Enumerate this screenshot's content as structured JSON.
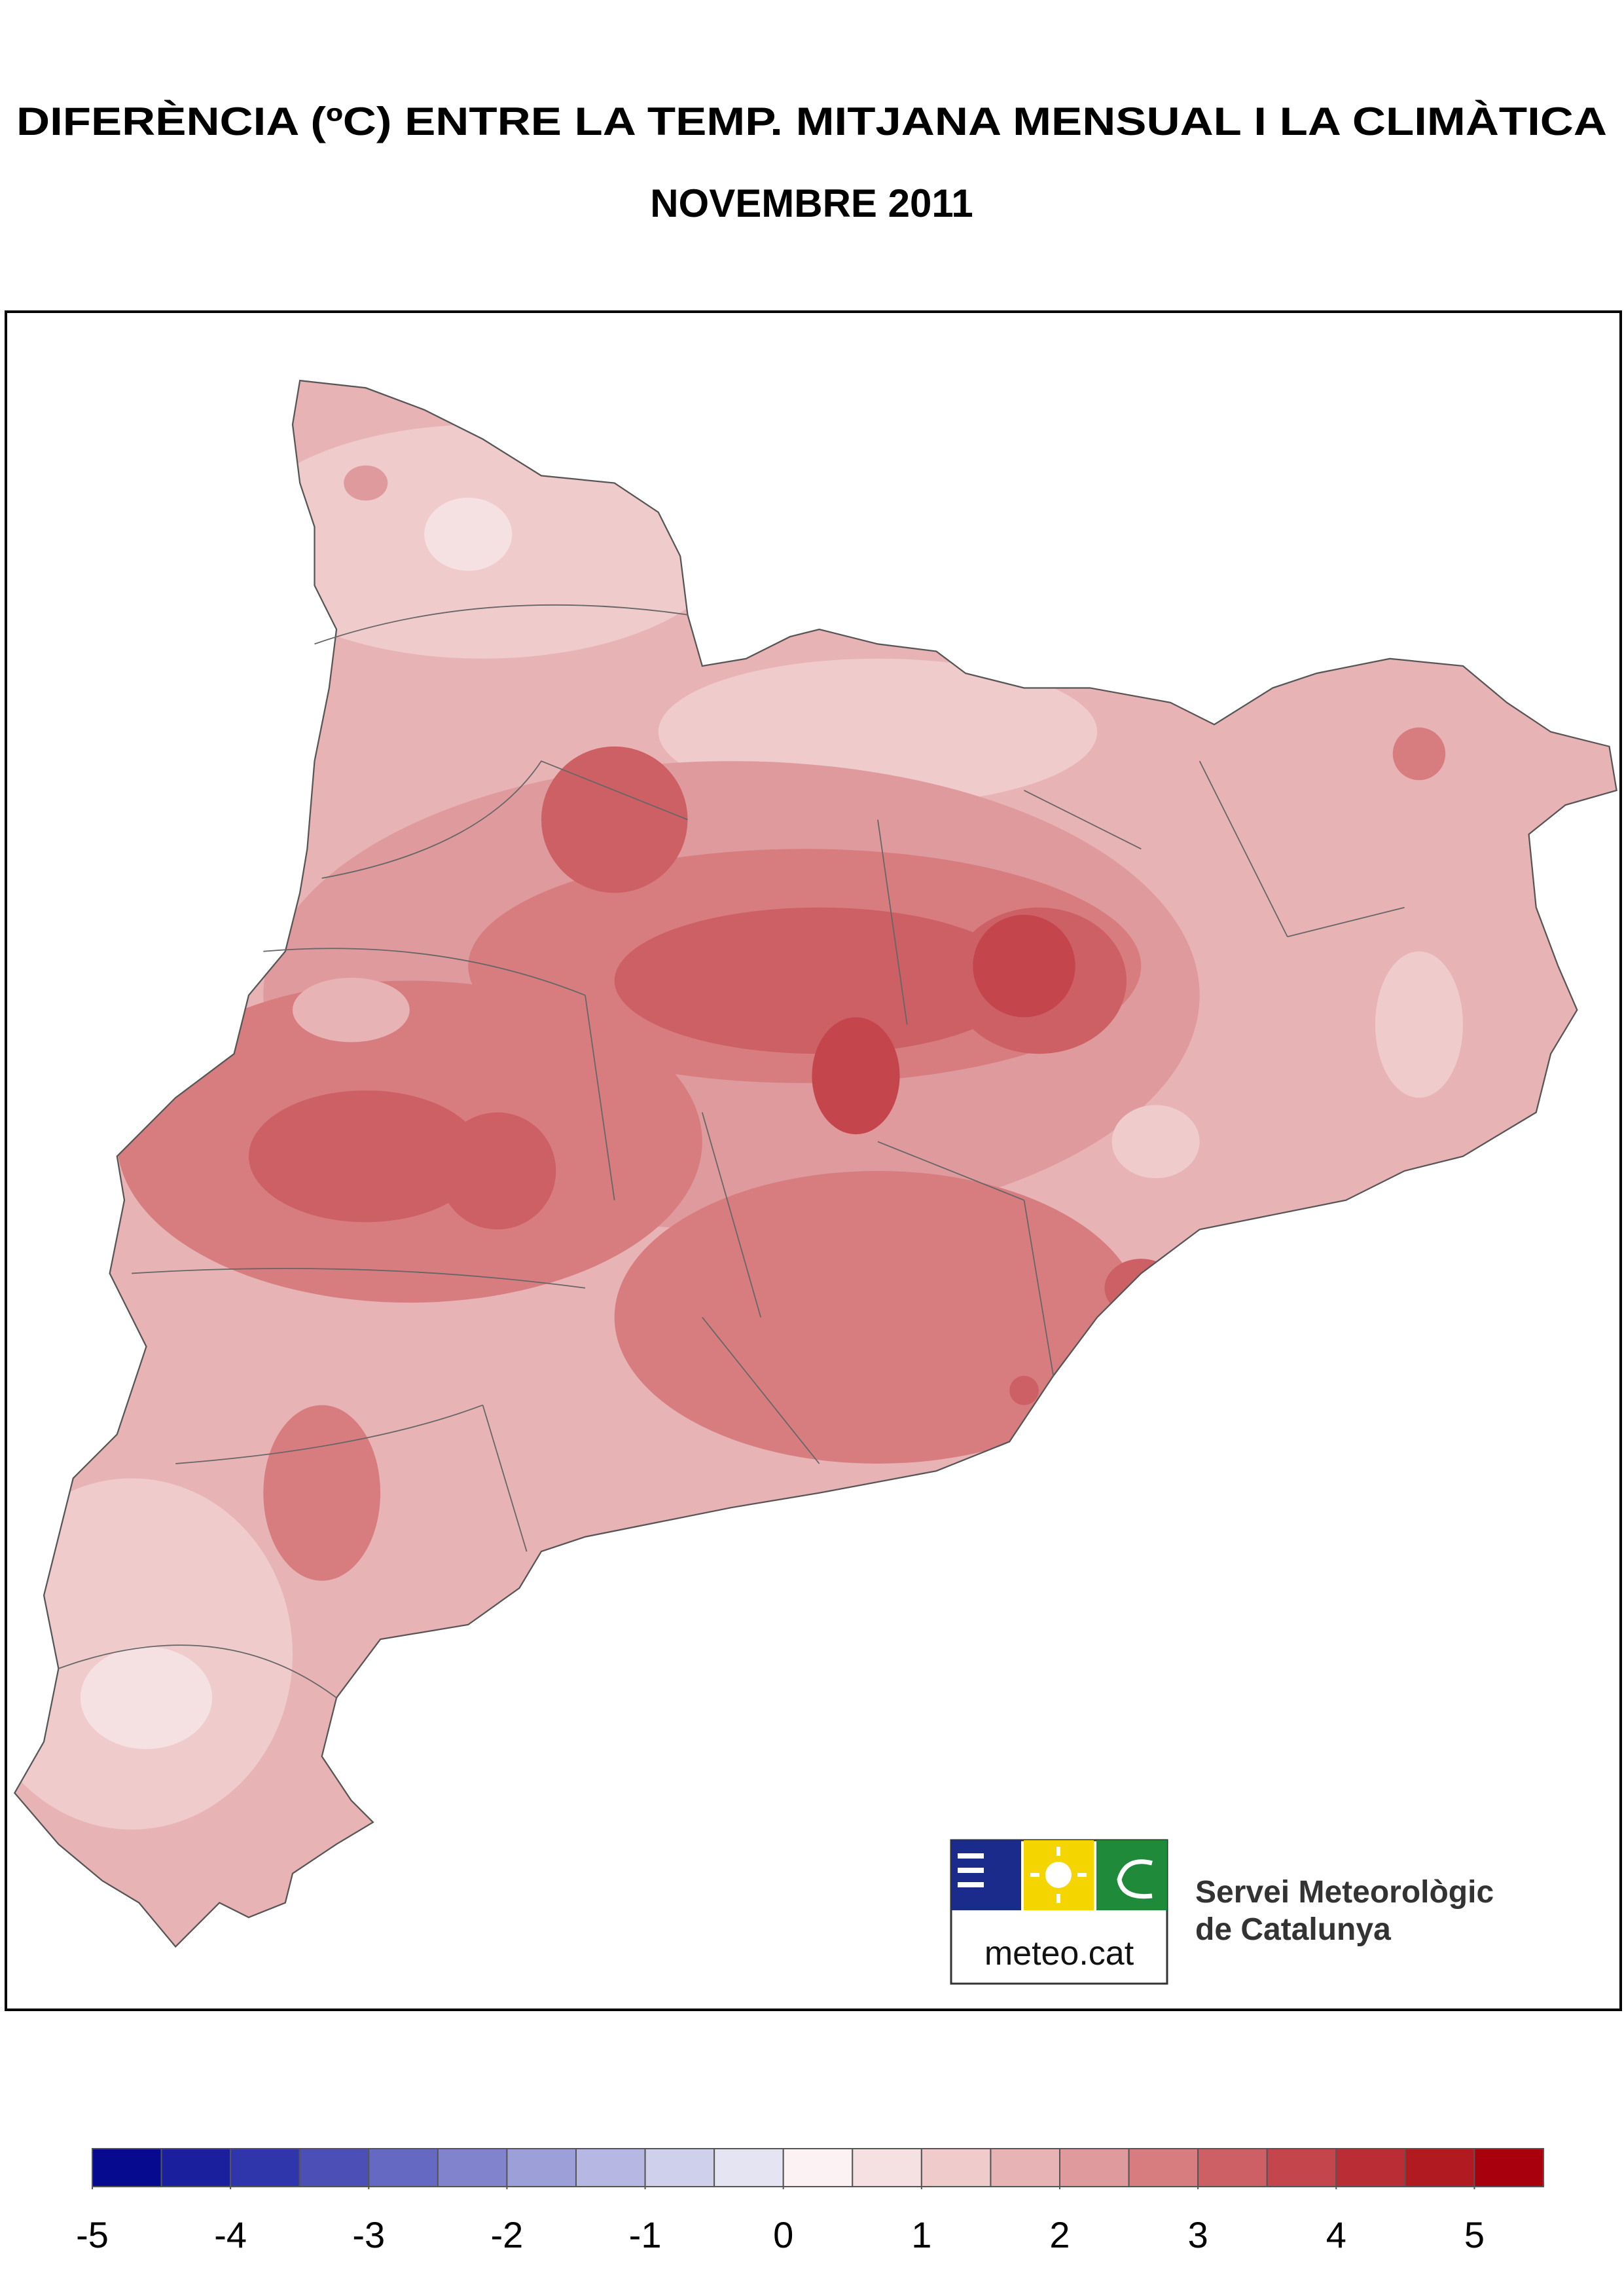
{
  "title": [
    "DIFERÈNCIA (ºC) ENTRE LA TEMP. MITJANA MENSUAL I LA CLIMÀTICA",
    "NOVEMBRE 2011"
  ],
  "logo": {
    "brand": "meteo.cat",
    "name": [
      "Servei Meteorològic",
      "de Catalunya"
    ]
  },
  "legend": {
    "colors": [
      "#050a8f",
      "#1a1f9e",
      "#2f35aa",
      "#4b4fb6",
      "#6669c2",
      "#8183cd",
      "#9d9fd8",
      "#b6b7e2",
      "#cfd0ec",
      "#e4e4f3",
      "#fcf2f3",
      "#f6e1e2",
      "#efcbcc",
      "#e7b3b5",
      "#df9a9d",
      "#d77d80",
      "#cd6065",
      "#c4454c",
      "#ba2d34",
      "#b11a21",
      "#a8000c"
    ],
    "ticks": [
      -5,
      -4,
      -3,
      -2,
      -1,
      0,
      1,
      2,
      3,
      4,
      5
    ]
  }
}
